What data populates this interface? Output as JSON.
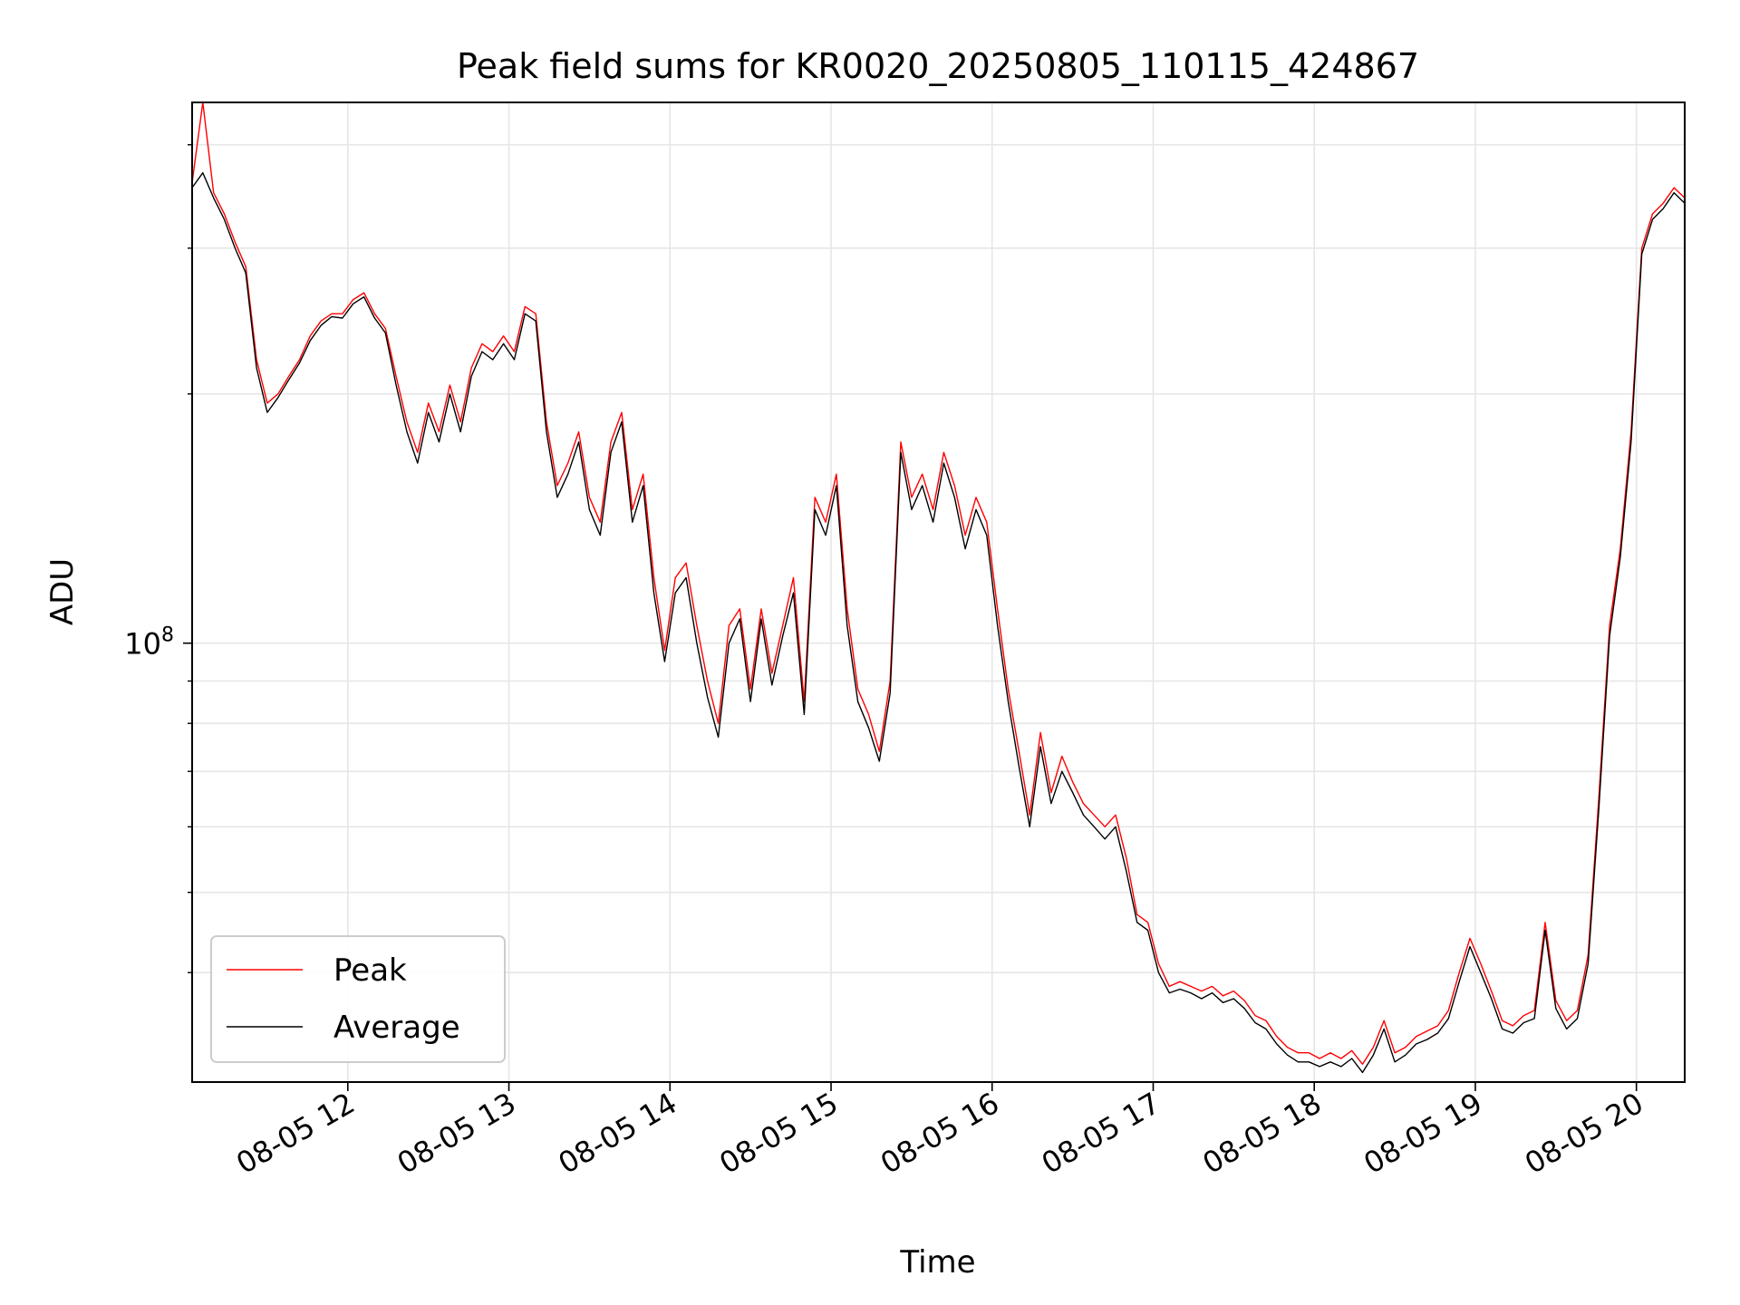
{
  "chart_data": {
    "type": "line",
    "title": "Peak field sums for KR0020_20250805_110115_424867",
    "xlabel": "Time",
    "ylabel": "ADU",
    "y_scale": "log",
    "grid": true,
    "legend_position": "lower-left",
    "x_range": [
      "08-05 11:02",
      "08-05 20:18"
    ],
    "y_range": [
      29500000.0,
      450000000.0
    ],
    "x_ticks": [
      {
        "time": "08-05 12:00",
        "label": "08-05 12"
      },
      {
        "time": "08-05 13:00",
        "label": "08-05 13"
      },
      {
        "time": "08-05 14:00",
        "label": "08-05 14"
      },
      {
        "time": "08-05 15:00",
        "label": "08-05 15"
      },
      {
        "time": "08-05 16:00",
        "label": "08-05 16"
      },
      {
        "time": "08-05 17:00",
        "label": "08-05 17"
      },
      {
        "time": "08-05 18:00",
        "label": "08-05 18"
      },
      {
        "time": "08-05 19:00",
        "label": "08-05 19"
      },
      {
        "time": "08-05 20:00",
        "label": "08-05 20"
      }
    ],
    "y_major_ticks": [
      {
        "value": 100000000,
        "label_base": "10",
        "label_exp": "8"
      }
    ],
    "y_minor_ticks": [
      40000000,
      50000000,
      60000000,
      70000000,
      80000000,
      90000000,
      200000000,
      300000000,
      400000000
    ],
    "x": [
      "08-05 11:02",
      "08-05 11:06",
      "08-05 11:10",
      "08-05 11:14",
      "08-05 11:18",
      "08-05 11:22",
      "08-05 11:26",
      "08-05 11:30",
      "08-05 11:34",
      "08-05 11:38",
      "08-05 11:42",
      "08-05 11:46",
      "08-05 11:50",
      "08-05 11:54",
      "08-05 11:58",
      "08-05 12:02",
      "08-05 12:06",
      "08-05 12:10",
      "08-05 12:14",
      "08-05 12:18",
      "08-05 12:22",
      "08-05 12:26",
      "08-05 12:30",
      "08-05 12:34",
      "08-05 12:38",
      "08-05 12:42",
      "08-05 12:46",
      "08-05 12:50",
      "08-05 12:54",
      "08-05 12:58",
      "08-05 13:02",
      "08-05 13:06",
      "08-05 13:10",
      "08-05 13:14",
      "08-05 13:18",
      "08-05 13:22",
      "08-05 13:26",
      "08-05 13:30",
      "08-05 13:34",
      "08-05 13:38",
      "08-05 13:42",
      "08-05 13:46",
      "08-05 13:50",
      "08-05 13:54",
      "08-05 13:58",
      "08-05 14:02",
      "08-05 14:06",
      "08-05 14:10",
      "08-05 14:14",
      "08-05 14:18",
      "08-05 14:22",
      "08-05 14:26",
      "08-05 14:30",
      "08-05 14:34",
      "08-05 14:38",
      "08-05 14:42",
      "08-05 14:46",
      "08-05 14:50",
      "08-05 14:54",
      "08-05 14:58",
      "08-05 15:02",
      "08-05 15:06",
      "08-05 15:10",
      "08-05 15:14",
      "08-05 15:18",
      "08-05 15:22",
      "08-05 15:26",
      "08-05 15:30",
      "08-05 15:34",
      "08-05 15:38",
      "08-05 15:42",
      "08-05 15:46",
      "08-05 15:50",
      "08-05 15:54",
      "08-05 15:58",
      "08-05 16:02",
      "08-05 16:06",
      "08-05 16:10",
      "08-05 16:14",
      "08-05 16:18",
      "08-05 16:22",
      "08-05 16:26",
      "08-05 16:30",
      "08-05 16:34",
      "08-05 16:38",
      "08-05 16:42",
      "08-05 16:46",
      "08-05 16:50",
      "08-05 16:54",
      "08-05 16:58",
      "08-05 17:02",
      "08-05 17:06",
      "08-05 17:10",
      "08-05 17:14",
      "08-05 17:18",
      "08-05 17:22",
      "08-05 17:26",
      "08-05 17:30",
      "08-05 17:34",
      "08-05 17:38",
      "08-05 17:42",
      "08-05 17:46",
      "08-05 17:50",
      "08-05 17:54",
      "08-05 17:58",
      "08-05 18:02",
      "08-05 18:06",
      "08-05 18:10",
      "08-05 18:14",
      "08-05 18:18",
      "08-05 18:22",
      "08-05 18:26",
      "08-05 18:30",
      "08-05 18:34",
      "08-05 18:38",
      "08-05 18:42",
      "08-05 18:46",
      "08-05 18:50",
      "08-05 18:54",
      "08-05 18:58",
      "08-05 19:02",
      "08-05 19:06",
      "08-05 19:10",
      "08-05 19:14",
      "08-05 19:18",
      "08-05 19:22",
      "08-05 19:26",
      "08-05 19:30",
      "08-05 19:34",
      "08-05 19:38",
      "08-05 19:42",
      "08-05 19:46",
      "08-05 19:50",
      "08-05 19:54",
      "08-05 19:58",
      "08-05 20:02",
      "08-05 20:06",
      "08-05 20:10",
      "08-05 20:14",
      "08-05 20:18"
    ],
    "series": [
      {
        "name": "Peak",
        "color": "#ff0000",
        "values": [
          360000000.0,
          450000000.0,
          350000000.0,
          330000000.0,
          305000000.0,
          285000000.0,
          220000000.0,
          195000000.0,
          200000000.0,
          210000000.0,
          220000000.0,
          235000000.0,
          245000000.0,
          250000000.0,
          250000000.0,
          260000000.0,
          265000000.0,
          250000000.0,
          240000000.0,
          210000000.0,
          185000000.0,
          170000000.0,
          195000000.0,
          180000000.0,
          205000000.0,
          185000000.0,
          215000000.0,
          230000000.0,
          225000000.0,
          235000000.0,
          225000000.0,
          255000000.0,
          250000000.0,
          185000000.0,
          155000000.0,
          165000000.0,
          180000000.0,
          150000000.0,
          140000000.0,
          175000000.0,
          190000000.0,
          145000000.0,
          160000000.0,
          120000000.0,
          98000000.0,
          120000000.0,
          125000000.0,
          105000000.0,
          90000000.0,
          80000000.0,
          105000000.0,
          110000000.0,
          88000000.0,
          110000000.0,
          92000000.0,
          105000000.0,
          120000000.0,
          85000000.0,
          150000000.0,
          140000000.0,
          160000000.0,
          110000000.0,
          88000000.0,
          82000000.0,
          74000000.0,
          90000000.0,
          175000000.0,
          150000000.0,
          160000000.0,
          145000000.0,
          170000000.0,
          155000000.0,
          135000000.0,
          150000000.0,
          140000000.0,
          110000000.0,
          88000000.0,
          74000000.0,
          62000000.0,
          78000000.0,
          66000000.0,
          73000000.0,
          68000000.0,
          64000000.0,
          62000000.0,
          60000000.0,
          62000000.0,
          55000000.0,
          47000000.0,
          46000000.0,
          41000000.0,
          38500000.0,
          39000000.0,
          38500000.0,
          38000000.0,
          38500000.0,
          37500000.0,
          38000000.0,
          37000000.0,
          35500000.0,
          35000000.0,
          33500000.0,
          32500000.0,
          32000000.0,
          32000000.0,
          31500000.0,
          32000000.0,
          31500000.0,
          32200000.0,
          31000000.0,
          32500000.0,
          35000000.0,
          32000000.0,
          32500000.0,
          33500000.0,
          34000000.0,
          34500000.0,
          36000000.0,
          40000000.0,
          44000000.0,
          41000000.0,
          38000000.0,
          35000000.0,
          34500000.0,
          35500000.0,
          36000000.0,
          46000000.0,
          37000000.0,
          35000000.0,
          36000000.0,
          42000000.0,
          65000000.0,
          105000000.0,
          130000000.0,
          180000000.0,
          300000000.0,
          330000000.0,
          340000000.0,
          355000000.0,
          345000000.0
        ]
      },
      {
        "name": "Average",
        "color": "#000000",
        "values": [
          355000000.0,
          370000000.0,
          345000000.0,
          325000000.0,
          300000000.0,
          280000000.0,
          215000000.0,
          190000000.0,
          198000000.0,
          208000000.0,
          218000000.0,
          232000000.0,
          242000000.0,
          248000000.0,
          247000000.0,
          257000000.0,
          262000000.0,
          247000000.0,
          237000000.0,
          205000000.0,
          180000000.0,
          165000000.0,
          190000000.0,
          175000000.0,
          200000000.0,
          180000000.0,
          210000000.0,
          225000000.0,
          220000000.0,
          230000000.0,
          220000000.0,
          250000000.0,
          245000000.0,
          180000000.0,
          150000000.0,
          160000000.0,
          175000000.0,
          145000000.0,
          135000000.0,
          170000000.0,
          185000000.0,
          140000000.0,
          155000000.0,
          115000000.0,
          95000000.0,
          115000000.0,
          120000000.0,
          100000000.0,
          86000000.0,
          77000000.0,
          100000000.0,
          107000000.0,
          85000000.0,
          107000000.0,
          89000000.0,
          102000000.0,
          115000000.0,
          82000000.0,
          145000000.0,
          135000000.0,
          155000000.0,
          105000000.0,
          85000000.0,
          79000000.0,
          72000000.0,
          87000000.0,
          170000000.0,
          145000000.0,
          155000000.0,
          140000000.0,
          165000000.0,
          150000000.0,
          130000000.0,
          145000000.0,
          135000000.0,
          105000000.0,
          85000000.0,
          71000000.0,
          60000000.0,
          75000000.0,
          64000000.0,
          70000000.0,
          66000000.0,
          62000000.0,
          60000000.0,
          58000000.0,
          60000000.0,
          53000000.0,
          46000000.0,
          45000000.0,
          40000000.0,
          37800000.0,
          38200000.0,
          37800000.0,
          37200000.0,
          37800000.0,
          36800000.0,
          37200000.0,
          36200000.0,
          34800000.0,
          34200000.0,
          32800000.0,
          31800000.0,
          31200000.0,
          31200000.0,
          30800000.0,
          31200000.0,
          30800000.0,
          31500000.0,
          30300000.0,
          31800000.0,
          34200000.0,
          31200000.0,
          31800000.0,
          32800000.0,
          33200000.0,
          33800000.0,
          35200000.0,
          39000000.0,
          43000000.0,
          40000000.0,
          37200000.0,
          34200000.0,
          33800000.0,
          34800000.0,
          35200000.0,
          45000000.0,
          36200000.0,
          34200000.0,
          35200000.0,
          41000000.0,
          63000000.0,
          102000000.0,
          127000000.0,
          175000000.0,
          295000000.0,
          325000000.0,
          335000000.0,
          350000000.0,
          340000000.0
        ]
      }
    ]
  }
}
